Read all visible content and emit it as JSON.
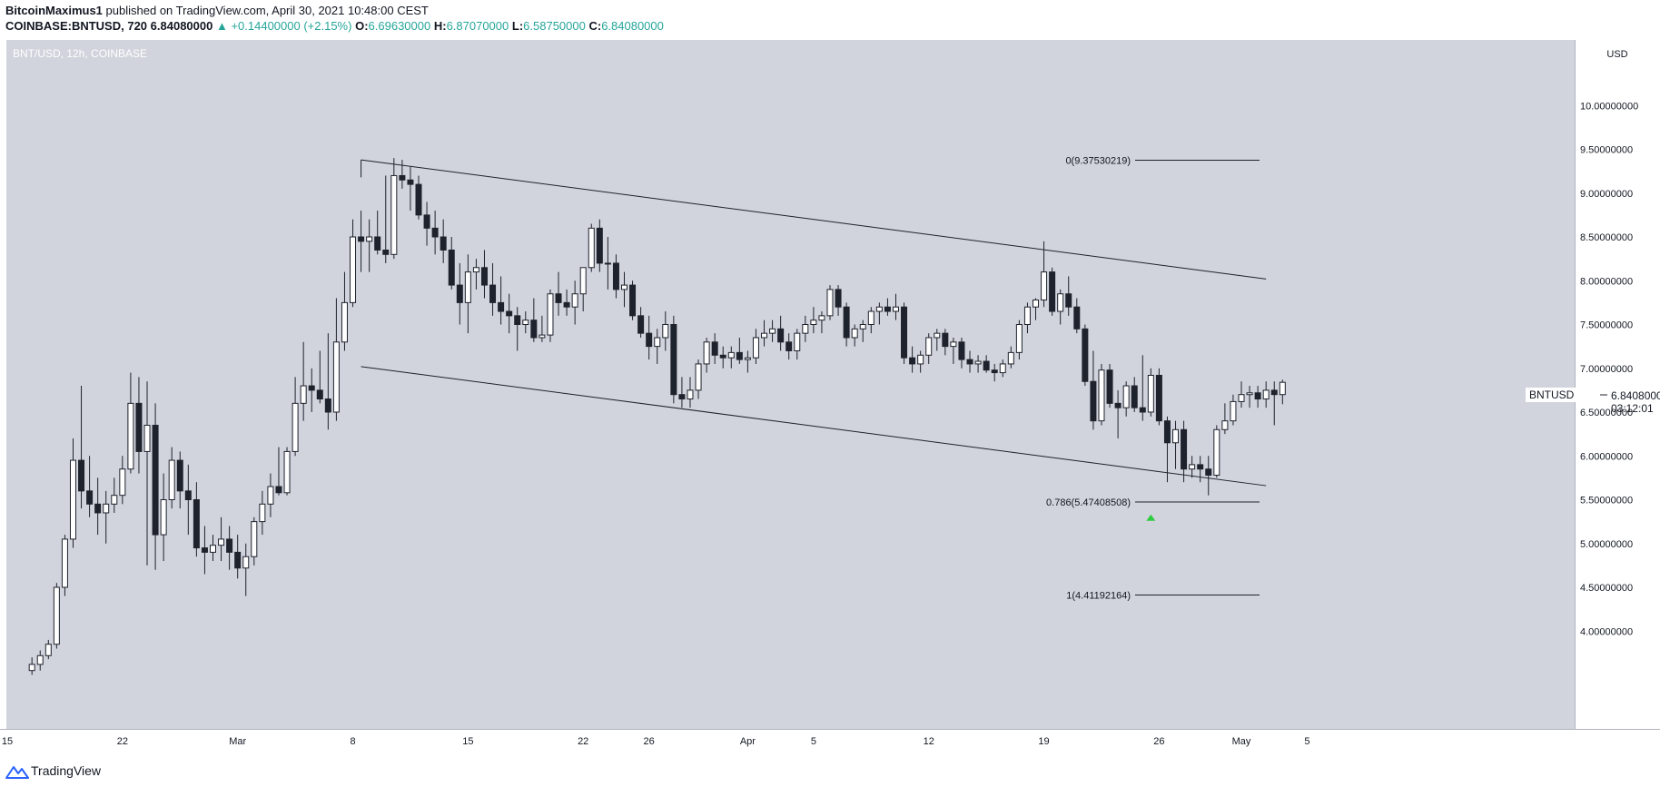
{
  "header": {
    "author": "BitcoinMaximus1",
    "published": "published on TradingView.com, April 30, 2021 10:48:00 CEST",
    "symbol": "COINBASE:BNTUSD, 720",
    "last": "6.84080000",
    "change": "▲ +0.14400000 (+2.15%)",
    "o_label": "O:",
    "o_value": "6.69630000",
    "h_label": "H:",
    "h_value": "6.87070000",
    "l_label": "L:",
    "l_value": "6.58750000",
    "c_label": "C:",
    "c_value": "6.84080000"
  },
  "footer": {
    "brand": "TradingView",
    "logo_icon": "tradingview-logo-icon"
  },
  "colors": {
    "background": "#d1d4dc",
    "up": "#ffffff",
    "down": "#1e222d",
    "line": "#1e222d",
    "accent": "#26a69a",
    "marker": "#2ecc40"
  },
  "chart_data": {
    "type": "candlestick",
    "title": "BNT/USD, 12h, COINBASE",
    "currency_label": "USD",
    "y_ticks": [
      "10.00000000",
      "9.50000000",
      "9.00000000",
      "8.50000000",
      "8.00000000",
      "7.50000000",
      "7.00000000",
      "6.50000000",
      "6.00000000",
      "5.50000000",
      "5.00000000",
      "4.50000000",
      "4.00000000"
    ],
    "x_ticks": [
      {
        "label": "15",
        "date": "2021-02-15"
      },
      {
        "label": "22",
        "date": "2021-02-22"
      },
      {
        "label": "Mar",
        "date": "2021-03-01"
      },
      {
        "label": "8",
        "date": "2021-03-08"
      },
      {
        "label": "15",
        "date": "2021-03-15"
      },
      {
        "label": "22",
        "date": "2021-03-22"
      },
      {
        "label": "26",
        "date": "2021-03-26"
      },
      {
        "label": "Apr",
        "date": "2021-04-01"
      },
      {
        "label": "5",
        "date": "2021-04-05"
      },
      {
        "label": "12",
        "date": "2021-04-12"
      },
      {
        "label": "19",
        "date": "2021-04-19"
      },
      {
        "label": "26",
        "date": "2021-04-26"
      },
      {
        "label": "May",
        "date": "2021-05-01"
      },
      {
        "label": "5",
        "date": "2021-05-05"
      }
    ],
    "last_price": {
      "symbol": "BNTUSD",
      "value": "6.84080000",
      "countdown": "03:12:01"
    },
    "fib_levels": [
      {
        "label": "0(9.37530219)",
        "value": 9.37530219
      },
      {
        "label": "0.786(5.47408508)",
        "value": 5.47408508
      },
      {
        "label": "1(4.41192164)",
        "value": 4.41192164
      }
    ],
    "trendlines": [
      {
        "name": "upper channel",
        "start": {
          "date": "2021-03-08 12:00",
          "price": 9.38
        },
        "end": {
          "date": "2021-05-02 12:00",
          "price": 8.02
        }
      },
      {
        "name": "lower channel",
        "start": {
          "date": "2021-03-08 12:00",
          "price": 7.02
        },
        "end": {
          "date": "2021-05-02 12:00",
          "price": 5.66
        }
      }
    ],
    "signal_marker": {
      "date": "2021-04-25 12:00",
      "price": 5.3,
      "direction": "up"
    },
    "candles": [
      [
        3.55,
        3.7,
        3.5,
        3.62
      ],
      [
        3.62,
        3.78,
        3.55,
        3.72
      ],
      [
        3.72,
        3.9,
        3.68,
        3.85
      ],
      [
        3.85,
        4.55,
        3.8,
        4.5
      ],
      [
        4.5,
        5.1,
        4.4,
        5.05
      ],
      [
        5.05,
        6.2,
        4.95,
        5.95
      ],
      [
        5.95,
        6.8,
        5.4,
        5.6
      ],
      [
        5.6,
        6.0,
        5.3,
        5.45
      ],
      [
        5.45,
        5.75,
        5.1,
        5.35
      ],
      [
        5.35,
        5.6,
        5.0,
        5.45
      ],
      [
        5.45,
        5.75,
        5.35,
        5.55
      ],
      [
        5.55,
        6.0,
        5.45,
        5.85
      ],
      [
        5.85,
        6.95,
        5.8,
        6.6
      ],
      [
        6.6,
        6.9,
        5.8,
        6.05
      ],
      [
        6.05,
        6.85,
        4.75,
        6.35
      ],
      [
        6.35,
        6.6,
        4.7,
        5.1
      ],
      [
        5.1,
        5.8,
        4.8,
        5.5
      ],
      [
        5.5,
        6.1,
        5.4,
        5.95
      ],
      [
        5.95,
        6.05,
        5.4,
        5.6
      ],
      [
        5.6,
        5.9,
        5.1,
        5.5
      ],
      [
        5.5,
        5.7,
        4.85,
        4.95
      ],
      [
        4.95,
        5.2,
        4.65,
        4.9
      ],
      [
        4.9,
        5.1,
        4.8,
        4.98
      ],
      [
        4.98,
        5.3,
        4.8,
        5.05
      ],
      [
        5.05,
        5.2,
        4.7,
        4.9
      ],
      [
        4.9,
        5.1,
        4.6,
        4.72
      ],
      [
        4.72,
        5.0,
        4.4,
        4.85
      ],
      [
        4.85,
        5.3,
        4.75,
        5.25
      ],
      [
        5.25,
        5.6,
        5.1,
        5.45
      ],
      [
        5.45,
        5.8,
        5.3,
        5.65
      ],
      [
        5.65,
        6.1,
        5.55,
        5.58
      ],
      [
        5.58,
        6.1,
        5.55,
        6.05
      ],
      [
        6.05,
        6.9,
        6.0,
        6.6
      ],
      [
        6.6,
        7.3,
        6.4,
        6.8
      ],
      [
        6.8,
        7.0,
        6.5,
        6.75
      ],
      [
        6.75,
        7.2,
        6.6,
        6.65
      ],
      [
        6.65,
        7.4,
        6.3,
        6.5
      ],
      [
        6.5,
        7.8,
        6.4,
        7.3
      ],
      [
        7.3,
        8.1,
        7.2,
        7.75
      ],
      [
        7.75,
        8.7,
        7.7,
        8.5
      ],
      [
        8.5,
        8.8,
        8.1,
        8.45
      ],
      [
        8.45,
        8.7,
        8.1,
        8.5
      ],
      [
        8.5,
        8.8,
        8.3,
        8.35
      ],
      [
        8.35,
        9.2,
        8.2,
        8.3
      ],
      [
        8.3,
        9.4,
        8.25,
        9.2
      ],
      [
        9.2,
        9.38,
        9.05,
        9.15
      ],
      [
        9.15,
        9.3,
        8.8,
        9.1
      ],
      [
        9.1,
        9.2,
        8.7,
        8.75
      ],
      [
        8.75,
        8.9,
        8.4,
        8.6
      ],
      [
        8.6,
        8.8,
        8.3,
        8.5
      ],
      [
        8.5,
        8.7,
        8.2,
        8.35
      ],
      [
        8.35,
        8.5,
        7.9,
        7.95
      ],
      [
        7.95,
        8.2,
        7.5,
        7.75
      ],
      [
        7.75,
        8.3,
        7.4,
        8.1
      ],
      [
        8.1,
        8.25,
        7.9,
        8.15
      ],
      [
        8.15,
        8.35,
        7.8,
        7.95
      ],
      [
        7.95,
        8.2,
        7.6,
        7.75
      ],
      [
        7.75,
        8.05,
        7.5,
        7.65
      ],
      [
        7.65,
        7.85,
        7.4,
        7.6
      ],
      [
        7.6,
        7.7,
        7.2,
        7.5
      ],
      [
        7.5,
        7.65,
        7.4,
        7.55
      ],
      [
        7.55,
        7.8,
        7.3,
        7.35
      ],
      [
        7.35,
        7.6,
        7.3,
        7.38
      ],
      [
        7.38,
        7.9,
        7.3,
        7.85
      ],
      [
        7.85,
        8.1,
        7.6,
        7.75
      ],
      [
        7.75,
        7.9,
        7.6,
        7.7
      ],
      [
        7.7,
        8.0,
        7.5,
        7.85
      ],
      [
        7.85,
        8.1,
        7.65,
        8.15
      ],
      [
        8.15,
        8.65,
        8.1,
        8.6
      ],
      [
        8.6,
        8.7,
        8.1,
        8.2
      ],
      [
        8.2,
        8.5,
        7.9,
        8.2
      ],
      [
        8.2,
        8.3,
        7.8,
        7.9
      ],
      [
        7.9,
        8.1,
        7.7,
        7.95
      ],
      [
        7.95,
        8.0,
        7.55,
        7.6
      ],
      [
        7.6,
        7.7,
        7.35,
        7.4
      ],
      [
        7.4,
        7.6,
        7.1,
        7.25
      ],
      [
        7.25,
        7.45,
        7.05,
        7.35
      ],
      [
        7.35,
        7.65,
        7.2,
        7.5
      ],
      [
        7.5,
        7.6,
        6.6,
        6.7
      ],
      [
        6.7,
        6.9,
        6.55,
        6.65
      ],
      [
        6.65,
        6.9,
        6.55,
        6.75
      ],
      [
        6.75,
        7.1,
        6.65,
        7.05
      ],
      [
        7.05,
        7.35,
        6.95,
        7.3
      ],
      [
        7.3,
        7.4,
        7.05,
        7.15
      ],
      [
        7.15,
        7.25,
        7.0,
        7.12
      ],
      [
        7.12,
        7.25,
        7.0,
        7.18
      ],
      [
        7.18,
        7.35,
        7.05,
        7.1
      ],
      [
        7.1,
        7.2,
        6.95,
        7.12
      ],
      [
        7.12,
        7.45,
        7.05,
        7.35
      ],
      [
        7.35,
        7.55,
        7.25,
        7.4
      ],
      [
        7.4,
        7.55,
        7.3,
        7.45
      ],
      [
        7.45,
        7.6,
        7.2,
        7.3
      ],
      [
        7.3,
        7.4,
        7.1,
        7.2
      ],
      [
        7.2,
        7.45,
        7.1,
        7.4
      ],
      [
        7.4,
        7.6,
        7.3,
        7.5
      ],
      [
        7.5,
        7.7,
        7.4,
        7.55
      ],
      [
        7.55,
        7.65,
        7.4,
        7.6
      ],
      [
        7.6,
        7.95,
        7.55,
        7.9
      ],
      [
        7.9,
        7.95,
        7.6,
        7.7
      ],
      [
        7.7,
        7.75,
        7.25,
        7.35
      ],
      [
        7.35,
        7.5,
        7.25,
        7.45
      ],
      [
        7.45,
        7.55,
        7.3,
        7.5
      ],
      [
        7.5,
        7.7,
        7.4,
        7.65
      ],
      [
        7.65,
        7.75,
        7.5,
        7.7
      ],
      [
        7.7,
        7.8,
        7.6,
        7.65
      ],
      [
        7.65,
        7.85,
        7.55,
        7.7
      ],
      [
        7.7,
        7.75,
        7.05,
        7.12
      ],
      [
        7.12,
        7.25,
        6.95,
        7.05
      ],
      [
        7.05,
        7.2,
        6.95,
        7.15
      ],
      [
        7.15,
        7.4,
        7.05,
        7.35
      ],
      [
        7.35,
        7.45,
        7.2,
        7.4
      ],
      [
        7.4,
        7.45,
        7.15,
        7.25
      ],
      [
        7.25,
        7.35,
        7.05,
        7.3
      ],
      [
        7.3,
        7.35,
        7.0,
        7.1
      ],
      [
        7.1,
        7.2,
        6.95,
        7.05
      ],
      [
        7.05,
        7.15,
        6.95,
        7.08
      ],
      [
        7.08,
        7.15,
        6.95,
        6.98
      ],
      [
        6.98,
        7.05,
        6.85,
        6.95
      ],
      [
        6.95,
        7.1,
        6.9,
        7.05
      ],
      [
        7.05,
        7.25,
        7.0,
        7.18
      ],
      [
        7.18,
        7.55,
        7.1,
        7.5
      ],
      [
        7.5,
        7.75,
        7.4,
        7.7
      ],
      [
        7.7,
        7.8,
        7.55,
        7.78
      ],
      [
        7.78,
        8.45,
        7.7,
        8.1
      ],
      [
        8.1,
        8.15,
        7.6,
        7.65
      ],
      [
        7.65,
        7.9,
        7.5,
        7.85
      ],
      [
        7.85,
        8.05,
        7.6,
        7.7
      ],
      [
        7.7,
        7.8,
        7.4,
        7.45
      ],
      [
        7.45,
        7.5,
        6.8,
        6.85
      ],
      [
        6.85,
        7.2,
        6.3,
        6.4
      ],
      [
        6.4,
        7.05,
        6.35,
        6.98
      ],
      [
        6.98,
        7.05,
        6.55,
        6.6
      ],
      [
        6.6,
        6.75,
        6.2,
        6.55
      ],
      [
        6.55,
        6.85,
        6.45,
        6.8
      ],
      [
        6.8,
        6.9,
        6.5,
        6.55
      ],
      [
        6.55,
        7.15,
        6.4,
        6.5
      ],
      [
        6.5,
        7.0,
        6.45,
        6.92
      ],
      [
        6.92,
        7.0,
        6.35,
        6.4
      ],
      [
        6.4,
        6.45,
        5.7,
        6.15
      ],
      [
        6.15,
        6.4,
        5.85,
        6.3
      ],
      [
        6.3,
        6.4,
        5.7,
        5.85
      ],
      [
        5.85,
        6.0,
        5.75,
        5.9
      ],
      [
        5.9,
        6.0,
        5.7,
        5.85
      ],
      [
        5.85,
        6.0,
        5.55,
        5.78
      ],
      [
        5.78,
        6.35,
        5.75,
        6.3
      ],
      [
        6.3,
        6.6,
        6.25,
        6.4
      ],
      [
        6.4,
        6.7,
        6.35,
        6.62
      ],
      [
        6.62,
        6.85,
        6.55,
        6.7
      ],
      [
        6.7,
        6.8,
        6.55,
        6.72
      ],
      [
        6.72,
        6.8,
        6.55,
        6.65
      ],
      [
        6.65,
        6.85,
        6.55,
        6.75
      ],
      [
        6.75,
        6.85,
        6.35,
        6.7
      ],
      [
        6.7,
        6.87,
        6.59,
        6.84
      ]
    ]
  }
}
